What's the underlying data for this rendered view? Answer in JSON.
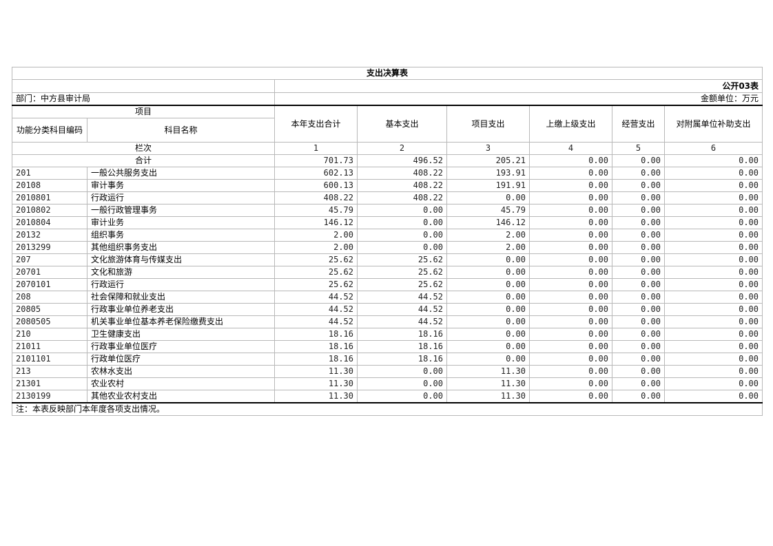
{
  "title": "支出决算表",
  "table_no": "公开03表",
  "department": "部门：中方县审计局",
  "unit": "金额单位：万元",
  "header": {
    "item": "项目",
    "code": "功能分类科目编码",
    "name": "科目名称",
    "cols": [
      "本年支出合计",
      "基本支出",
      "项目支出",
      "上缴上级支出",
      "经营支出",
      "对附属单位补助支出"
    ]
  },
  "column_row": {
    "label": "栏次",
    "nums": [
      "1",
      "2",
      "3",
      "4",
      "5",
      "6"
    ]
  },
  "total_row": {
    "label": "合计",
    "values": [
      "701.73",
      "496.52",
      "205.21",
      "0.00",
      "0.00",
      "0.00"
    ]
  },
  "rows": [
    {
      "code": "201",
      "name": "一般公共服务支出",
      "values": [
        "602.13",
        "408.22",
        "193.91",
        "0.00",
        "0.00",
        "0.00"
      ]
    },
    {
      "code": "20108",
      "name": "审计事务",
      "values": [
        "600.13",
        "408.22",
        "191.91",
        "0.00",
        "0.00",
        "0.00"
      ]
    },
    {
      "code": "2010801",
      "name": "行政运行",
      "values": [
        "408.22",
        "408.22",
        "0.00",
        "0.00",
        "0.00",
        "0.00"
      ]
    },
    {
      "code": "2010802",
      "name": "一般行政管理事务",
      "values": [
        "45.79",
        "0.00",
        "45.79",
        "0.00",
        "0.00",
        "0.00"
      ]
    },
    {
      "code": "2010804",
      "name": "审计业务",
      "values": [
        "146.12",
        "0.00",
        "146.12",
        "0.00",
        "0.00",
        "0.00"
      ]
    },
    {
      "code": "20132",
      "name": "组织事务",
      "values": [
        "2.00",
        "0.00",
        "2.00",
        "0.00",
        "0.00",
        "0.00"
      ]
    },
    {
      "code": "2013299",
      "name": "其他组织事务支出",
      "values": [
        "2.00",
        "0.00",
        "2.00",
        "0.00",
        "0.00",
        "0.00"
      ]
    },
    {
      "code": "207",
      "name": "文化旅游体育与传媒支出",
      "values": [
        "25.62",
        "25.62",
        "0.00",
        "0.00",
        "0.00",
        "0.00"
      ]
    },
    {
      "code": "20701",
      "name": "文化和旅游",
      "values": [
        "25.62",
        "25.62",
        "0.00",
        "0.00",
        "0.00",
        "0.00"
      ]
    },
    {
      "code": "2070101",
      "name": "行政运行",
      "values": [
        "25.62",
        "25.62",
        "0.00",
        "0.00",
        "0.00",
        "0.00"
      ]
    },
    {
      "code": "208",
      "name": "社会保障和就业支出",
      "values": [
        "44.52",
        "44.52",
        "0.00",
        "0.00",
        "0.00",
        "0.00"
      ]
    },
    {
      "code": "20805",
      "name": "行政事业单位养老支出",
      "values": [
        "44.52",
        "44.52",
        "0.00",
        "0.00",
        "0.00",
        "0.00"
      ]
    },
    {
      "code": "2080505",
      "name": "机关事业单位基本养老保险缴费支出",
      "values": [
        "44.52",
        "44.52",
        "0.00",
        "0.00",
        "0.00",
        "0.00"
      ]
    },
    {
      "code": "210",
      "name": "卫生健康支出",
      "values": [
        "18.16",
        "18.16",
        "0.00",
        "0.00",
        "0.00",
        "0.00"
      ]
    },
    {
      "code": "21011",
      "name": "行政事业单位医疗",
      "values": [
        "18.16",
        "18.16",
        "0.00",
        "0.00",
        "0.00",
        "0.00"
      ]
    },
    {
      "code": "2101101",
      "name": "行政单位医疗",
      "values": [
        "18.16",
        "18.16",
        "0.00",
        "0.00",
        "0.00",
        "0.00"
      ]
    },
    {
      "code": "213",
      "name": "农林水支出",
      "values": [
        "11.30",
        "0.00",
        "11.30",
        "0.00",
        "0.00",
        "0.00"
      ]
    },
    {
      "code": "21301",
      "name": "农业农村",
      "values": [
        "11.30",
        "0.00",
        "11.30",
        "0.00",
        "0.00",
        "0.00"
      ]
    },
    {
      "code": "2130199",
      "name": "其他农业农村支出",
      "values": [
        "11.30",
        "0.00",
        "11.30",
        "0.00",
        "0.00",
        "0.00"
      ]
    }
  ],
  "note": "注：本表反映部门本年度各项支出情况。"
}
